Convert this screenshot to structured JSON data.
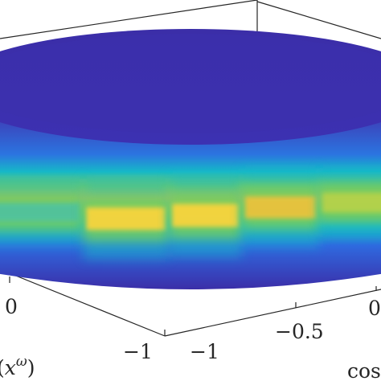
{
  "chart_data": {
    "type": "surface",
    "colormap": "parula",
    "view": "3d",
    "axes": {
      "x": {
        "label": "cos",
        "tick_labels": [
          "−1",
          "−0.5"
        ]
      },
      "y": {
        "label": "(x^ω)",
        "tick_labels": [
          "−1",
          "0"
        ]
      }
    },
    "surface": {
      "description_levels": "cylindrical band, high-intensity ridge around the middle",
      "ridge_segments": [
        {
          "angle_start": 0.0,
          "angle_end": 0.25,
          "peak": 0.55
        },
        {
          "angle_start": 0.25,
          "angle_end": 0.45,
          "peak": 0.95
        },
        {
          "angle_start": 0.45,
          "angle_end": 0.62,
          "peak": 1.0
        },
        {
          "angle_start": 0.62,
          "angle_end": 0.8,
          "peak": 0.88
        },
        {
          "angle_start": 0.8,
          "angle_end": 1.0,
          "peak": 0.62
        }
      ]
    },
    "grid": false
  },
  "labels": {
    "tick_x_neg1": "−1",
    "tick_x_neg05": "−0.5",
    "tick_y_neg1": "−1",
    "tick_y_0": "0",
    "xlabel": "cos",
    "ylabel": "(xω)",
    "ylabel_prefix": "(",
    "ylabel_x": "x",
    "ylabel_sup": "ω",
    "ylabel_suffix": ")",
    "tick_partial_right": "0"
  }
}
